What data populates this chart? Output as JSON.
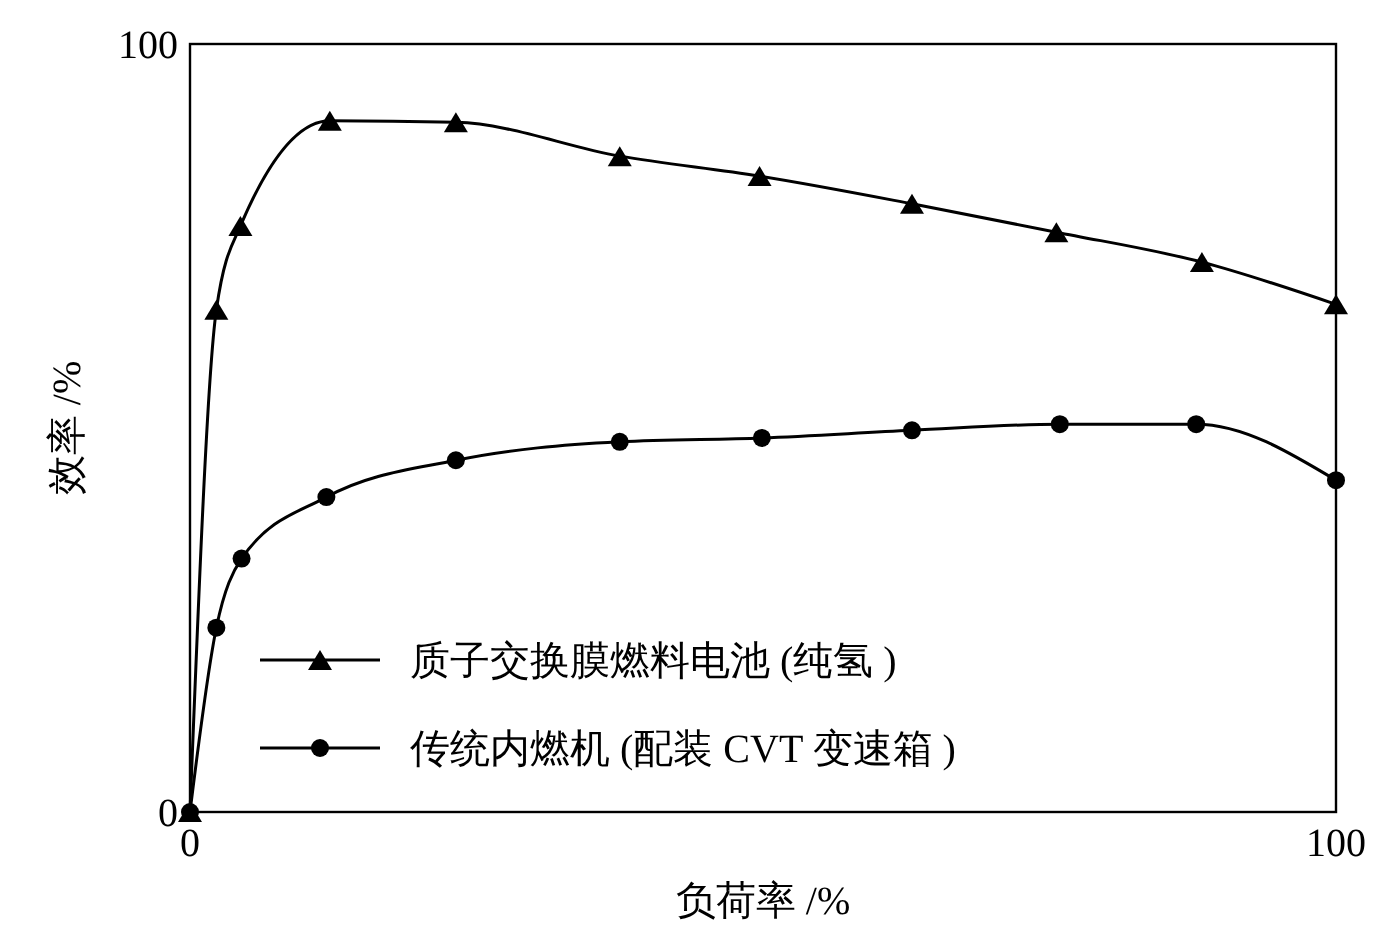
{
  "chart_data": {
    "type": "line",
    "xlabel": "负荷率 /%",
    "ylabel": "效率 /%",
    "xlim": [
      0,
      100
    ],
    "ylim": [
      0,
      100
    ],
    "xticks": [
      0,
      100
    ],
    "yticks": [
      0,
      100
    ],
    "grid": false,
    "legend": "bottom",
    "series": [
      {
        "name": "质子交换膜燃料电池 (纯氢 )",
        "color": "#000000",
        "marker": "triangle",
        "x": [
          0,
          2.3,
          4.4,
          12.2,
          23.2,
          37.5,
          49.7,
          63,
          75.6,
          88.3,
          100
        ],
        "values": [
          0,
          65.4,
          76.3,
          90,
          89.8,
          85.4,
          82.8,
          79.2,
          75.5,
          71.6,
          66.1
        ]
      },
      {
        "name": "传统内燃机 (配装 CVT 变速箱 )",
        "color": "#000000",
        "marker": "circle",
        "x": [
          0,
          2.3,
          4.5,
          11.9,
          23.2,
          37.5,
          49.9,
          63,
          75.9,
          87.8,
          100
        ],
        "values": [
          0,
          24,
          33,
          41,
          45.8,
          48.2,
          48.7,
          49.7,
          50.5,
          50.5,
          43.2
        ]
      }
    ]
  }
}
